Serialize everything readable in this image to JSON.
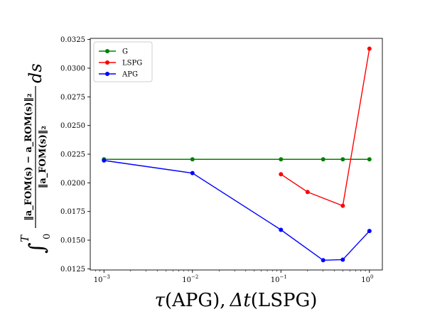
{
  "chart_data": {
    "type": "line",
    "x_scale": "log",
    "xlim": [
      0.0007,
      1.4
    ],
    "ylim": [
      0.0124,
      0.0326
    ],
    "x_ticks": [
      0.001,
      0.01,
      0.1,
      1
    ],
    "x_tick_labels": [
      {
        "base": "10",
        "exp": "−3"
      },
      {
        "base": "10",
        "exp": "−2"
      },
      {
        "base": "10",
        "exp": "−1"
      },
      {
        "base": "10",
        "exp": "0"
      }
    ],
    "y_ticks": [
      0.0125,
      0.015,
      0.0175,
      0.02,
      0.0225,
      0.025,
      0.0275,
      0.03,
      0.0325
    ],
    "y_tick_labels": [
      "0.0125",
      "0.0150",
      "0.0175",
      "0.0200",
      "0.0225",
      "0.0250",
      "0.0275",
      "0.0300",
      "0.0325"
    ],
    "xlabel": {
      "tau": "τ",
      "apg": "(APG),",
      "delta_t": "Δt",
      "lspg": "(LSPG)"
    },
    "ylabel": {
      "integral": "∫",
      "lower": "0",
      "upper": "T",
      "numerator": "‖a_FOM(s) − a_ROM(s)‖₂",
      "denominator": "‖a_FOM(s)‖₂",
      "ds": "ds"
    },
    "legend_position": "upper-left",
    "grid": false,
    "series": [
      {
        "name": "G",
        "color": "#008000",
        "x": [
          0.001,
          0.01,
          0.1,
          0.3,
          0.5,
          1.0
        ],
        "y": [
          0.02205,
          0.02205,
          0.02205,
          0.02205,
          0.02205,
          0.02205
        ]
      },
      {
        "name": "LSPG",
        "color": "#ff0000",
        "x": [
          0.1,
          0.2,
          0.5,
          1.0
        ],
        "y": [
          0.02075,
          0.0192,
          0.018,
          0.0317
        ]
      },
      {
        "name": "APG",
        "color": "#0000ff",
        "x": [
          0.001,
          0.01,
          0.1,
          0.3,
          0.5,
          1.0
        ],
        "y": [
          0.02195,
          0.02085,
          0.0159,
          0.01325,
          0.0133,
          0.0158
        ]
      }
    ]
  }
}
